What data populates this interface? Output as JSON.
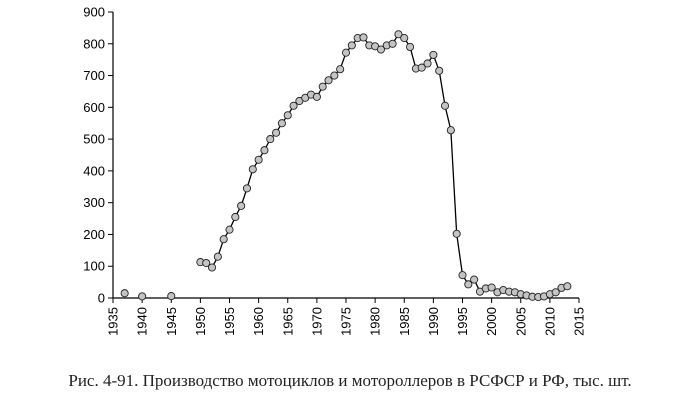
{
  "caption": "Рис. 4-91. Производство мотоциклов и мотороллеров в РСФСР и РФ, тыс. шт.",
  "chart_data": {
    "type": "line",
    "title": "",
    "xlabel": "",
    "ylabel": "",
    "xlim": [
      1935,
      2015
    ],
    "ylim": [
      0,
      900
    ],
    "xticks": [
      1935,
      1940,
      1945,
      1950,
      1955,
      1960,
      1965,
      1970,
      1975,
      1980,
      1985,
      1990,
      1995,
      2000,
      2005,
      2010,
      2015
    ],
    "yticks": [
      0,
      100,
      200,
      300,
      400,
      500,
      600,
      700,
      800,
      900
    ],
    "grid": false,
    "marker": "circle",
    "series": [
      {
        "points": [
          [
            1937,
            15
          ],
          [
            1940,
            5
          ],
          [
            1945,
            6
          ],
          [
            1950,
            113
          ],
          [
            1951,
            110
          ],
          [
            1952,
            96
          ],
          [
            1953,
            130
          ],
          [
            1954,
            185
          ],
          [
            1955,
            215
          ],
          [
            1956,
            255
          ],
          [
            1957,
            290
          ],
          [
            1958,
            345
          ],
          [
            1959,
            405
          ],
          [
            1960,
            435
          ],
          [
            1961,
            465
          ],
          [
            1962,
            500
          ],
          [
            1963,
            520
          ],
          [
            1964,
            550
          ],
          [
            1965,
            575
          ],
          [
            1966,
            605
          ],
          [
            1967,
            620
          ],
          [
            1968,
            630
          ],
          [
            1969,
            640
          ],
          [
            1970,
            633
          ],
          [
            1971,
            665
          ],
          [
            1972,
            685
          ],
          [
            1973,
            700
          ],
          [
            1974,
            720
          ],
          [
            1975,
            772
          ],
          [
            1976,
            795
          ],
          [
            1977,
            818
          ],
          [
            1978,
            820
          ],
          [
            1979,
            795
          ],
          [
            1980,
            792
          ],
          [
            1981,
            782
          ],
          [
            1982,
            795
          ],
          [
            1983,
            800
          ],
          [
            1984,
            830
          ],
          [
            1985,
            818
          ],
          [
            1986,
            790
          ],
          [
            1987,
            722
          ],
          [
            1988,
            725
          ],
          [
            1989,
            738
          ],
          [
            1990,
            765
          ],
          [
            1991,
            715
          ],
          [
            1992,
            605
          ],
          [
            1993,
            528
          ],
          [
            1994,
            202
          ],
          [
            1995,
            72
          ],
          [
            1996,
            43
          ],
          [
            1997,
            58
          ],
          [
            1998,
            20
          ],
          [
            1999,
            30
          ],
          [
            2000,
            33
          ],
          [
            2001,
            18
          ],
          [
            2002,
            25
          ],
          [
            2003,
            20
          ],
          [
            2004,
            18
          ],
          [
            2005,
            12
          ],
          [
            2006,
            8
          ],
          [
            2007,
            4
          ],
          [
            2008,
            3
          ],
          [
            2009,
            5
          ],
          [
            2010,
            12
          ],
          [
            2011,
            18
          ],
          [
            2012,
            32
          ],
          [
            2013,
            37
          ]
        ]
      }
    ]
  }
}
